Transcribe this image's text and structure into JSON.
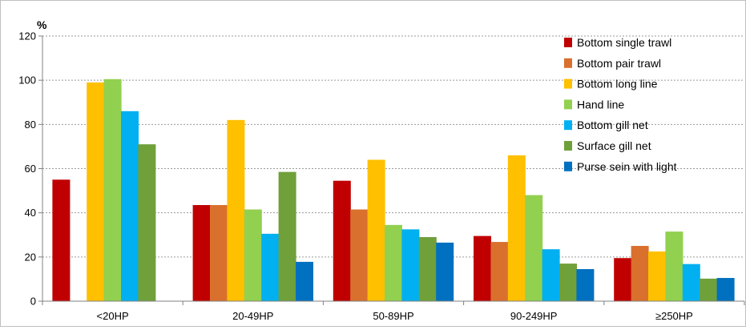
{
  "chart_data": {
    "type": "bar",
    "title": "",
    "ylabel": "%",
    "xlabel": "",
    "ylim": [
      0,
      120
    ],
    "yticks": [
      0,
      20,
      40,
      60,
      80,
      100,
      120
    ],
    "grid": "horizontal dashed",
    "legend_position": "top-right",
    "categories": [
      "<20HP",
      "20-49HP",
      "50-89HP",
      "90-249HP",
      "≥250HP"
    ],
    "series": [
      {
        "name": "Bottom single trawl",
        "color": "#c00000",
        "values": [
          55,
          43.5,
          54.5,
          29.5,
          19.5
        ]
      },
      {
        "name": "Bottom pair trawl",
        "color": "#d9702d",
        "values": [
          null,
          43.5,
          41.5,
          26.8,
          25
        ]
      },
      {
        "name": "Bottom long line",
        "color": "#ffc000",
        "values": [
          99,
          82,
          64,
          66,
          22.5
        ]
      },
      {
        "name": "Hand line",
        "color": "#92d050",
        "values": [
          100.5,
          41.5,
          34.5,
          48,
          31.5
        ]
      },
      {
        "name": "Bottom gill net",
        "color": "#00b0f0",
        "values": [
          86,
          30.5,
          32.5,
          23.5,
          16.8
        ]
      },
      {
        "name": "Surface gill net",
        "color": "#70a03a",
        "values": [
          71,
          58.5,
          29,
          17,
          10.2
        ]
      },
      {
        "name": "Purse sein with light",
        "color": "#0070c0",
        "values": [
          null,
          17.8,
          26.5,
          14.5,
          10.5
        ]
      }
    ]
  }
}
